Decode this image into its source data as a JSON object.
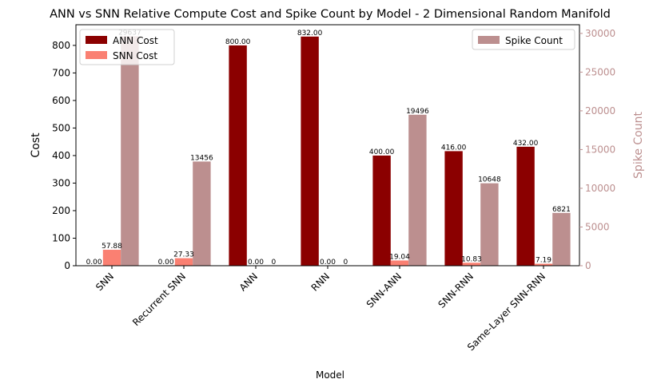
{
  "chart_data": {
    "type": "bar",
    "title": "ANN vs SNN Relative Compute Cost and Spike Count by Model - 2 Dimensional Random Manifold",
    "xlabel": "Model",
    "ylabel": "Cost",
    "y2label": "Spike Count",
    "ylim": [
      0,
      875
    ],
    "y2lim": [
      0,
      31119
    ],
    "yticks": [
      0,
      100,
      200,
      300,
      400,
      500,
      600,
      700,
      800
    ],
    "y2ticks": [
      0,
      5000,
      10000,
      15000,
      20000,
      25000,
      30000
    ],
    "categories": [
      "SNN",
      "Recurrent SNN",
      "ANN",
      "RNN",
      "SNN-ANN",
      "SNN-RNN",
      "Same-Layer SNN-RNN"
    ],
    "series": [
      {
        "name": "ANN Cost",
        "axis": "left",
        "color": "#8b0000",
        "values": [
          0,
          0,
          800,
          832,
          400,
          416,
          432
        ],
        "labels": [
          "0.00",
          "0.00",
          "800.00",
          "832.00",
          "400.00",
          "416.00",
          "432.00"
        ]
      },
      {
        "name": "SNN Cost",
        "axis": "left",
        "color": "#fa8072",
        "values": [
          57.88,
          27.33,
          0,
          0,
          19.04,
          10.83,
          7.19
        ],
        "labels": [
          "57.88",
          "27.33",
          "0.00",
          "0.00",
          "19.04",
          "10.83",
          "7.19"
        ]
      },
      {
        "name": "Spike Count",
        "axis": "right",
        "color": "#bc8f8f",
        "values": [
          29637,
          13456,
          0,
          0,
          19496,
          10648,
          6821
        ],
        "labels": [
          "29637",
          "13456",
          "0",
          "0",
          "19496",
          "10648",
          "6821"
        ]
      }
    ],
    "legend_left": "upper-left",
    "legend_right": "upper-right",
    "grid": false
  }
}
